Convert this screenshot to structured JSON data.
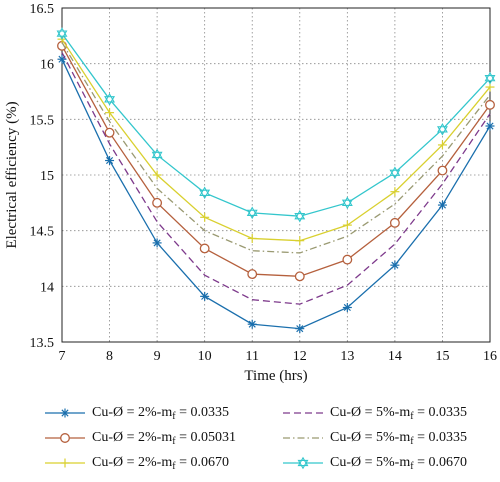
{
  "chart_data": {
    "type": "line",
    "title": "",
    "xlabel": "Time (hrs)",
    "ylabel": "Electrical efficiency (%)",
    "xlim": [
      7,
      16
    ],
    "ylim": [
      13.5,
      16.5
    ],
    "x": [
      7,
      8,
      9,
      10,
      11,
      12,
      13,
      14,
      15,
      16
    ],
    "xticks": [
      "7",
      "8",
      "9",
      "10",
      "11",
      "12",
      "13",
      "14",
      "15",
      "16"
    ],
    "yticks": [
      {
        "value": 13.5,
        "label": "13.5"
      },
      {
        "value": 14,
        "label": "14"
      },
      {
        "value": 14.5,
        "label": "14.5"
      },
      {
        "value": 15,
        "label": "15"
      },
      {
        "value": 15.5,
        "label": "15.5"
      },
      {
        "value": 16,
        "label": "16"
      },
      {
        "value": 16.5,
        "label": "16.5"
      }
    ],
    "grid": true,
    "legend_position": "bottom",
    "series": [
      {
        "name": "Cu-Ø = 2%-mf = 0.0335",
        "label_main": "Cu-Ø = 2%-m",
        "label_sub": "f",
        "label_tail": " = 0.0335",
        "color": "#1a6fad",
        "marker": "asterisk",
        "dash": "solid",
        "values": [
          16.04,
          15.13,
          14.39,
          13.91,
          13.66,
          13.62,
          13.81,
          14.19,
          14.73,
          15.44
        ]
      },
      {
        "name": "Cu-Ø = 2%-mf = 0.05031",
        "label_main": "Cu-Ø = 2%-m",
        "label_sub": "f",
        "label_tail": " = 0.05031",
        "color": "#b5603d",
        "marker": "circle",
        "dash": "solid",
        "values": [
          16.16,
          15.38,
          14.75,
          14.34,
          14.11,
          14.09,
          14.24,
          14.57,
          15.04,
          15.63
        ]
      },
      {
        "name": "Cu-Ø = 2%-mf = 0.0670",
        "label_main": "Cu-Ø = 2%-m",
        "label_sub": "f",
        "label_tail": " = 0.0670",
        "color": "#d9d02f",
        "marker": "plus",
        "dash": "solid",
        "values": [
          16.22,
          15.56,
          15.0,
          14.62,
          14.43,
          14.41,
          14.55,
          14.85,
          15.27,
          15.79
        ]
      },
      {
        "name": "Cu-Ø = 5%-mf = 0.0335",
        "label_main": "Cu-Ø = 5%-m",
        "label_sub": "f",
        "label_tail": " = 0.0335",
        "color": "#7e3a8c",
        "marker": "none",
        "dash": "dashed",
        "values": [
          16.1,
          15.28,
          14.58,
          14.1,
          13.88,
          13.84,
          14.01,
          14.38,
          14.92,
          15.55
        ]
      },
      {
        "name": "Cu-Ø = 5%-mf = 0.0335",
        "label_main": "Cu-Ø = 5%-m",
        "label_sub": "f",
        "label_tail": " = 0.0335",
        "color": "#9a9a72",
        "marker": "none",
        "dash": "dashdot",
        "values": [
          16.19,
          15.48,
          14.88,
          14.5,
          14.32,
          14.3,
          14.45,
          14.74,
          15.17,
          15.72
        ]
      },
      {
        "name": "Cu-Ø = 5%-mf = 0.0670",
        "label_main": "Cu-Ø = 5%-m",
        "label_sub": "f",
        "label_tail": " = 0.0670",
        "color": "#33c6cc",
        "marker": "hexagram",
        "dash": "solid",
        "values": [
          16.27,
          15.68,
          15.18,
          14.84,
          14.66,
          14.63,
          14.75,
          15.02,
          15.41,
          15.87
        ]
      }
    ]
  }
}
